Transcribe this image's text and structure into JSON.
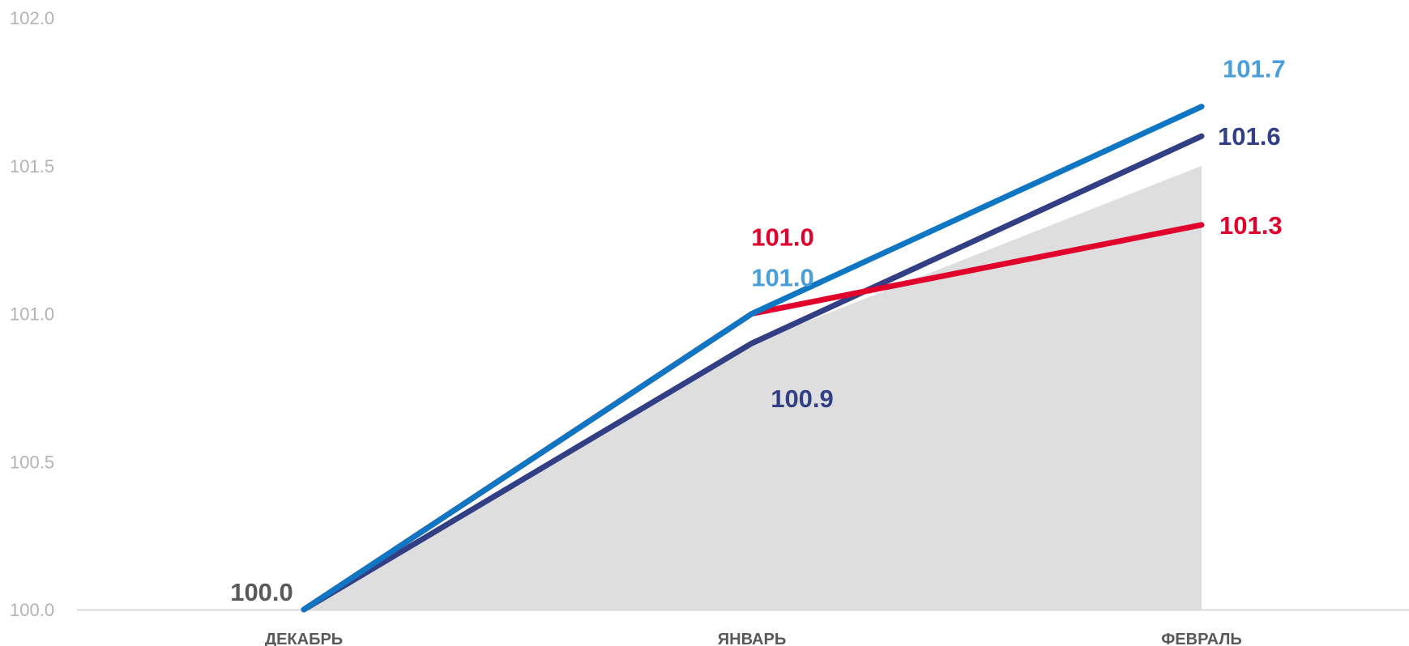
{
  "chart_data": {
    "type": "line",
    "categories": [
      "ДЕКАБРЬ",
      "ЯНВАРЬ",
      "ФЕВРАЛЬ"
    ],
    "ylim": [
      100.0,
      102.0
    ],
    "yticks": [
      "100.0",
      "100.5",
      "101.0",
      "101.5",
      "102.0"
    ],
    "grid": false,
    "legend": "none",
    "area": {
      "values": [
        100.0,
        100.9,
        101.5
      ],
      "color": "#dedede"
    },
    "series": [
      {
        "values": [
          100.0,
          100.9,
          101.6
        ],
        "color": "#333f84",
        "labels": [
          "",
          "100.9",
          "101.6"
        ]
      },
      {
        "values": [
          100.0,
          101.0,
          101.3
        ],
        "color": "#e0002b",
        "labels": [
          "",
          "101.0",
          "101.3"
        ]
      },
      {
        "values": [
          100.0,
          101.0,
          101.7
        ],
        "color": "#0f76c4",
        "label_color": "#4a9fdb",
        "labels": [
          "",
          "101.0",
          "101.7"
        ]
      }
    ],
    "start_label": {
      "text": "100.0",
      "color": "#595959"
    }
  }
}
